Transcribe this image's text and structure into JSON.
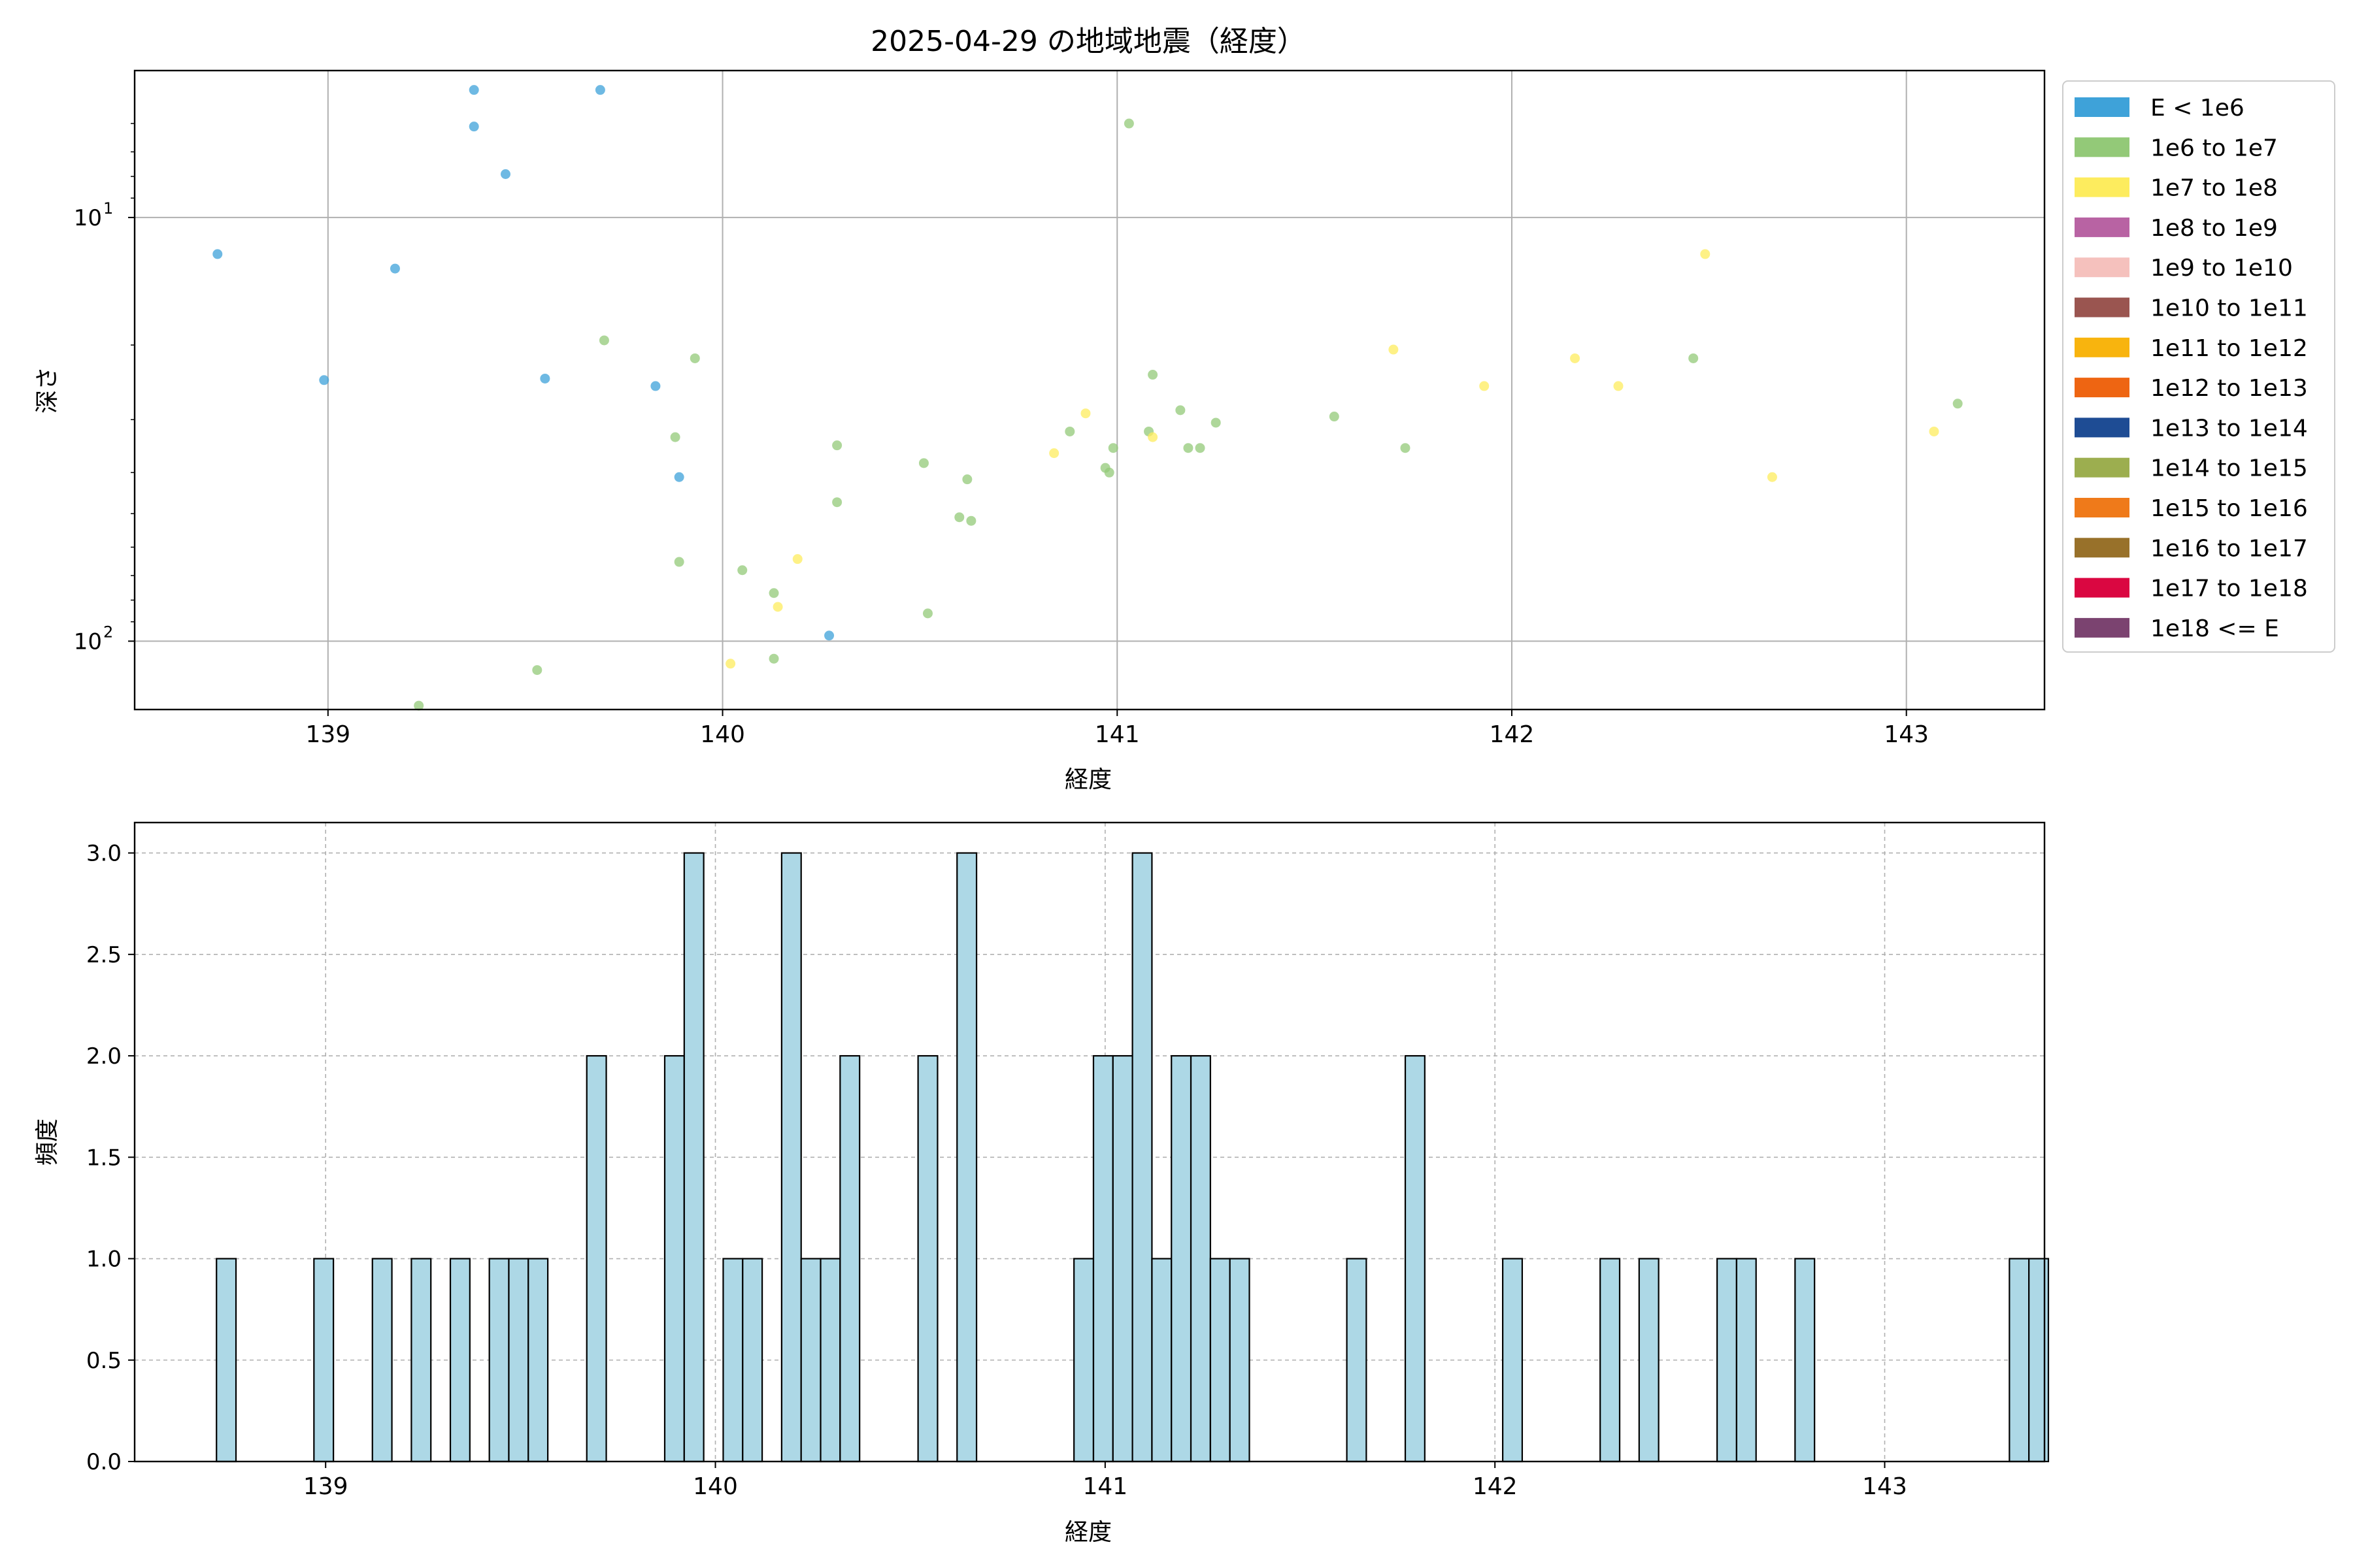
{
  "chart_data": [
    {
      "type": "scatter",
      "title": "2025-04-29 の地域地震（経度）",
      "xlabel": "経度",
      "ylabel": "深さ",
      "xlim": [
        138.51,
        143.35
      ],
      "ylim": [
        145,
        4.5
      ],
      "yscale": "log",
      "yaxis_inverted": true,
      "grid": true,
      "x_ticks": [
        139,
        140,
        141,
        142,
        143
      ],
      "y_ticks": [
        {
          "value": 10,
          "base": "10",
          "exp": "1"
        },
        {
          "value": 100,
          "base": "10",
          "exp": "2"
        }
      ],
      "legend_position": "outside-right-top",
      "legend": [
        {
          "label": "E < 1e6",
          "color": "#3ea2d9"
        },
        {
          "label": "1e6 to 1e7",
          "color": "#93c978"
        },
        {
          "label": "1e7 to 1e8",
          "color": "#fdec5e"
        },
        {
          "label": "1e8 to 1e9",
          "color": "#b863a3"
        },
        {
          "label": "1e9 to 1e10",
          "color": "#f5c1bd"
        },
        {
          "label": "1e10 to 1e11",
          "color": "#9a5550"
        },
        {
          "label": "1e11 to 1e12",
          "color": "#f8b40e"
        },
        {
          "label": "1e12 to 1e13",
          "color": "#ee6512"
        },
        {
          "label": "1e13 to 1e14",
          "color": "#1e4c94"
        },
        {
          "label": "1e14 to 1e15",
          "color": "#9cae4f"
        },
        {
          "label": "1e15 to 1e16",
          "color": "#ef7a1a"
        },
        {
          "label": "1e16 to 1e17",
          "color": "#98712a"
        },
        {
          "label": "1e17 to 1e18",
          "color": "#da0741"
        },
        {
          "label": "1e18 <= E",
          "color": "#7b4370"
        }
      ],
      "series": [
        {
          "name": "E < 1e6",
          "color": "#3ea2d9",
          "points": [
            [
              138.72,
              12.2
            ],
            [
              138.99,
              24.2
            ],
            [
              139.17,
              13.2
            ],
            [
              139.37,
              5.0
            ],
            [
              139.37,
              6.1
            ],
            [
              139.45,
              7.9
            ],
            [
              139.55,
              24.0
            ],
            [
              139.69,
              5.0
            ],
            [
              139.83,
              25.0
            ],
            [
              139.89,
              41.0
            ],
            [
              140.27,
              97.0
            ]
          ]
        },
        {
          "name": "1e6 to 1e7",
          "color": "#93c978",
          "points": [
            [
              139.23,
              142.0
            ],
            [
              139.53,
              117.0
            ],
            [
              139.7,
              19.5
            ],
            [
              139.88,
              33.0
            ],
            [
              139.89,
              65.0
            ],
            [
              139.93,
              21.5
            ],
            [
              140.05,
              68.0
            ],
            [
              140.13,
              77.0
            ],
            [
              140.13,
              110.0
            ],
            [
              140.29,
              34.5
            ],
            [
              140.29,
              47.0
            ],
            [
              140.51,
              38.0
            ],
            [
              140.52,
              86.0
            ],
            [
              140.6,
              51.0
            ],
            [
              140.62,
              41.5
            ],
            [
              140.63,
              52.0
            ],
            [
              140.88,
              32.0
            ],
            [
              140.97,
              39.0
            ],
            [
              140.98,
              40.0
            ],
            [
              140.99,
              35.0
            ],
            [
              141.03,
              6.0
            ],
            [
              141.08,
              32.0
            ],
            [
              141.09,
              23.5
            ],
            [
              141.16,
              28.5
            ],
            [
              141.18,
              35.0
            ],
            [
              141.21,
              35.0
            ],
            [
              141.25,
              30.5
            ],
            [
              141.55,
              29.5
            ],
            [
              141.73,
              35.0
            ],
            [
              142.46,
              21.5
            ],
            [
              143.13,
              27.5
            ]
          ]
        },
        {
          "name": "1e7 to 1e8",
          "color": "#fdec5e",
          "points": [
            [
              140.02,
              113.0
            ],
            [
              140.14,
              83.0
            ],
            [
              140.19,
              64.0
            ],
            [
              140.84,
              36.0
            ],
            [
              140.92,
              29.0
            ],
            [
              141.09,
              33.0
            ],
            [
              141.7,
              20.5
            ],
            [
              141.93,
              25.0
            ],
            [
              142.16,
              21.5
            ],
            [
              142.27,
              25.0
            ],
            [
              142.49,
              12.2
            ],
            [
              142.66,
              41.0
            ],
            [
              143.07,
              32.0
            ]
          ]
        }
      ]
    },
    {
      "type": "bar",
      "xlabel": "経度",
      "ylabel": "頻度",
      "xlim": [
        138.51,
        143.41
      ],
      "ylim": [
        0,
        3.15
      ],
      "grid": true,
      "bar_color": "#add8e6",
      "x_ticks": [
        139,
        140,
        141,
        142,
        143
      ],
      "y_ticks": [
        "0.0",
        "0.5",
        "1.0",
        "1.5",
        "2.0",
        "2.5",
        "3.0"
      ],
      "bin_start": 138.72,
      "bin_width": 0.05,
      "counts": [
        1,
        0,
        0,
        0,
        0,
        1,
        0,
        0,
        1,
        0,
        1,
        0,
        1,
        0,
        1,
        1,
        1,
        0,
        0,
        2,
        0,
        0,
        0,
        2,
        3,
        0,
        1,
        1,
        0,
        3,
        1,
        1,
        2,
        0,
        0,
        0,
        2,
        0,
        3,
        0,
        0,
        0,
        0,
        0,
        1,
        2,
        2,
        3,
        1,
        2,
        2,
        1,
        1,
        0,
        0,
        0,
        0,
        0,
        1,
        0,
        0,
        2,
        0,
        0,
        0,
        0,
        1,
        0,
        0,
        0,
        0,
        1,
        0,
        1,
        0,
        0,
        0,
        1,
        1,
        0,
        0,
        1,
        0,
        0,
        0,
        0,
        0,
        0,
        0,
        0,
        0,
        0,
        1,
        1,
        0
      ]
    }
  ]
}
